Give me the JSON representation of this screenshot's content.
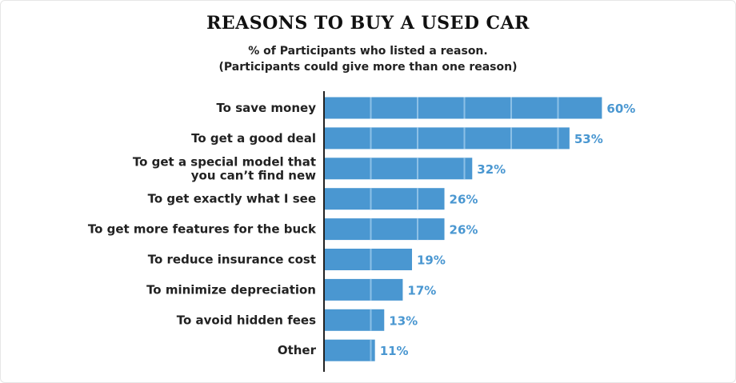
{
  "chart_data": {
    "type": "bar",
    "orientation": "horizontal",
    "title": "REASONS TO BUY A USED CAR",
    "subtitle": [
      "% of Participants who listed a reason.",
      "(Participants could give more than one reason)"
    ],
    "categories": [
      [
        "To save money"
      ],
      [
        "To get a good deal"
      ],
      [
        "To get a special model that",
        "you can’t find new"
      ],
      [
        "To get exactly what I see"
      ],
      [
        "To get more features for the buck"
      ],
      [
        "To reduce insurance cost"
      ],
      [
        "To minimize depreciation"
      ],
      [
        "To avoid hidden fees"
      ],
      [
        "Other"
      ]
    ],
    "values": [
      60,
      53,
      32,
      26,
      26,
      19,
      17,
      13,
      11
    ],
    "value_labels": [
      "60%",
      "53%",
      "32%",
      "26%",
      "26%",
      "19%",
      "17%",
      "13%",
      "11%"
    ],
    "xlim": [
      0,
      70
    ],
    "grid": false,
    "legend": "none",
    "colors": {
      "bar": "#4a97d1",
      "bar_segment_line": "#8cc0e6",
      "value_text": "#4a97d1",
      "axis": "#222222"
    }
  }
}
